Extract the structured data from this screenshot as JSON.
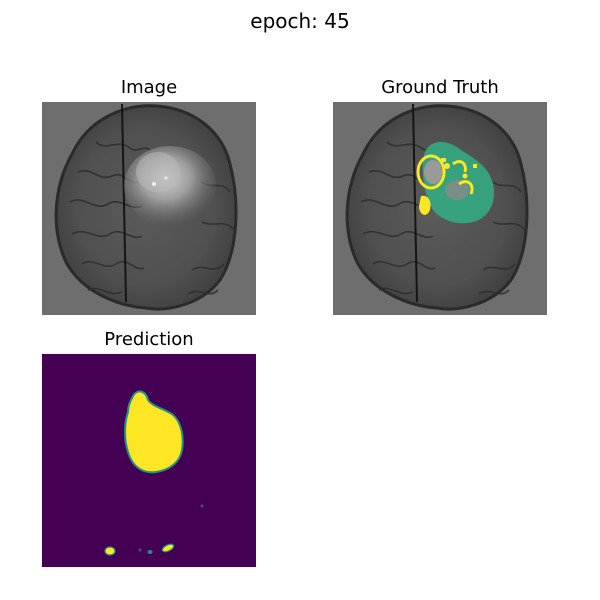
{
  "figure": {
    "suptitle": "epoch: 45"
  },
  "panels": {
    "image": {
      "title": "Image"
    },
    "ground_truth": {
      "title": "Ground Truth"
    },
    "prediction": {
      "title": "Prediction"
    }
  },
  "colors": {
    "figure_background": "#ffffff",
    "scan_background": "#6e6e6e",
    "viridis_low": "#440154",
    "viridis_mid": "#21918c",
    "viridis_high": "#fde725",
    "ground_truth_green": "#35a882",
    "ground_truth_yellow": "#fde725"
  }
}
